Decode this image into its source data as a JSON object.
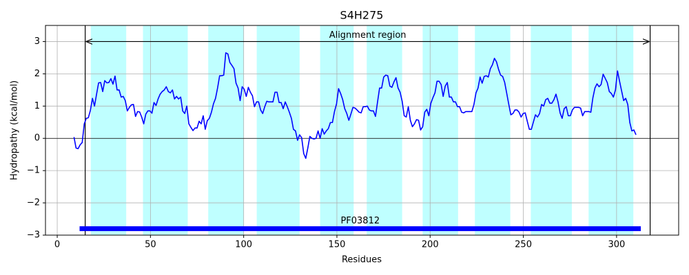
{
  "chart_data": {
    "type": "line",
    "title": "S4H275",
    "xlabel": "Residues",
    "ylabel": "Hydropathy (kcal/mol)",
    "xlim": [
      -6.3,
      333.3
    ],
    "ylim": [
      -3,
      3.5
    ],
    "xticks": [
      0,
      50,
      100,
      150,
      200,
      250,
      300
    ],
    "yticks": [
      {
        "value": -3,
        "label": "−3"
      },
      {
        "value": -2,
        "label": "−2"
      },
      {
        "value": -1,
        "label": "−1"
      },
      0,
      1,
      2,
      3
    ],
    "grid": true,
    "color": "#0000ff",
    "span_color": "#bfffff",
    "spans": [
      [
        18,
        37
      ],
      [
        46,
        70
      ],
      [
        81,
        100
      ],
      [
        107,
        130
      ],
      [
        141,
        159
      ],
      [
        166,
        185
      ],
      [
        196,
        215
      ],
      [
        224,
        243
      ],
      [
        254,
        276
      ],
      [
        285,
        309
      ]
    ],
    "vlines": [
      15,
      318
    ],
    "hline": 0,
    "annotation": {
      "text": "Alignment region",
      "x": [
        15,
        318
      ],
      "y": 3
    },
    "domain": {
      "label": "PF03812",
      "start": 12,
      "end": 313,
      "y": -2.8
    },
    "x": [
      9,
      10.1,
      11.2,
      12.3,
      13.4,
      14.5,
      15.6,
      16.7,
      17.8,
      18.9,
      20,
      21.1,
      22.2,
      23.3,
      24.4,
      25.5,
      26.6,
      27.7,
      28.8,
      29.9,
      31,
      32.1,
      33.2,
      34.3,
      35.4,
      36.5,
      37.6,
      38.7,
      39.8,
      40.9,
      42,
      43.1,
      44.2,
      45.3,
      46.4,
      47.5,
      48.6,
      49.7,
      50.8,
      51.9,
      53,
      54.1,
      55.2,
      56.3,
      57.4,
      58.5,
      59.6,
      60.7,
      61.8,
      62.9,
      64,
      65.1,
      66.2,
      67.3,
      68.4,
      69.5,
      70.6,
      71.7,
      72.8,
      73.9,
      75,
      76.1,
      77.2,
      78.3,
      79.4,
      80.5,
      81.6,
      82.7,
      83.8,
      84.9,
      86,
      87.1,
      88.2,
      89.3,
      90.4,
      91.5,
      92.6,
      93.7,
      94.8,
      95.9,
      97,
      98.1,
      99.2,
      100.3,
      101.4,
      102.5,
      103.6,
      104.7,
      105.8,
      106.9,
      108,
      109.1,
      110.2,
      111.3,
      112.4,
      113.5,
      114.6,
      115.7,
      116.8,
      117.9,
      119,
      120.1,
      121.2,
      122.3,
      123.4,
      124.5,
      125.6,
      126.7,
      127.8,
      128.9,
      130,
      131.1,
      132.2,
      133.3,
      134.4,
      135.5,
      136.6,
      137.7,
      138.8,
      139.9,
      141,
      142.1,
      143.2,
      144.3,
      145.4,
      146.5,
      147.6,
      148.7,
      149.8,
      150.9,
      152,
      153.1,
      154.2,
      155.3,
      156.4,
      157.5,
      158.6,
      159.7,
      160.8,
      161.9,
      163,
      164.1,
      165.2,
      166.3,
      167.4,
      168.5,
      169.6,
      170.7,
      171.8,
      172.9,
      174,
      175.1,
      176.2,
      177.3,
      178.4,
      179.5,
      180.6,
      181.7,
      182.8,
      183.9,
      185,
      186.1,
      187.2,
      188.3,
      189.4,
      190.5,
      191.6,
      192.7,
      193.8,
      194.9,
      196,
      197.1,
      198.2,
      199.3,
      200.4,
      201.5,
      202.6,
      203.7,
      204.8,
      205.9,
      207,
      208.1,
      209.2,
      210.3,
      211.4,
      212.5,
      213.6,
      214.7,
      215.8,
      216.9,
      218,
      219.1,
      220.2,
      221.3,
      222.4,
      223.5,
      224.6,
      225.7,
      226.8,
      227.9,
      229,
      230.1,
      231.2,
      232.3,
      233.4,
      234.5,
      235.6,
      236.7,
      237.8,
      238.9,
      240,
      241.1,
      242.2,
      243.3,
      244.4,
      245.5,
      246.6,
      247.7,
      248.8,
      249.9,
      251,
      252.1,
      253.2,
      254.3,
      255.4,
      256.5,
      257.6,
      258.7,
      259.8,
      260.9,
      262,
      263.1,
      264.2,
      265.3,
      266.4,
      267.5,
      268.6,
      269.7,
      270.8,
      271.9,
      273,
      274.1,
      275.2,
      276.3,
      277.4,
      278.5,
      279.6,
      280.7,
      281.8,
      282.9,
      284,
      285.1,
      286.2,
      287.3,
      288.4,
      289.5,
      290.6,
      291.7,
      292.8,
      293.9,
      295,
      296.1,
      297.2,
      298.3,
      299.4,
      300.5,
      301.6,
      302.7,
      303.8,
      304.9,
      306,
      307.1,
      308.2,
      309.3,
      310.4
    ],
    "values": [
      0.04,
      -0.3,
      -0.32,
      -0.2,
      -0.13,
      0.45,
      0.62,
      0.64,
      0.87,
      1.24,
      1.0,
      1.37,
      1.72,
      1.73,
      1.45,
      1.79,
      1.72,
      1.73,
      1.85,
      1.68,
      1.93,
      1.5,
      1.5,
      1.28,
      1.3,
      1.17,
      0.85,
      0.96,
      1.04,
      1.05,
      0.68,
      0.83,
      0.82,
      0.66,
      0.45,
      0.75,
      0.85,
      0.85,
      0.78,
      1.11,
      1.02,
      1.22,
      1.37,
      1.45,
      1.5,
      1.6,
      1.45,
      1.41,
      1.5,
      1.22,
      1.3,
      1.22,
      1.28,
      0.85,
      0.77,
      1.0,
      0.45,
      0.34,
      0.24,
      0.32,
      0.32,
      0.53,
      0.45,
      0.7,
      0.28,
      0.55,
      0.62,
      0.81,
      1.07,
      1.24,
      1.56,
      1.94,
      1.94,
      1.96,
      2.65,
      2.62,
      2.35,
      2.26,
      2.16,
      1.71,
      1.56,
      1.17,
      1.6,
      1.52,
      1.3,
      1.58,
      1.43,
      1.32,
      0.98,
      1.13,
      1.13,
      0.88,
      0.77,
      0.98,
      1.15,
      1.13,
      1.13,
      1.13,
      1.43,
      1.43,
      1.11,
      1.11,
      0.92,
      1.13,
      0.98,
      0.81,
      0.62,
      0.28,
      0.23,
      -0.06,
      0.11,
      0.02,
      -0.47,
      -0.62,
      -0.3,
      0.06,
      0,
      -0.02,
      0,
      0.23,
      0,
      0.3,
      0.13,
      0.23,
      0.3,
      0.49,
      0.49,
      0.83,
      1.07,
      1.54,
      1.39,
      1.2,
      0.92,
      0.77,
      0.56,
      0.75,
      0.96,
      0.94,
      0.88,
      0.81,
      0.79,
      0.98,
      0.98,
      1.0,
      0.88,
      0.85,
      0.85,
      0.68,
      1.13,
      1.56,
      1.56,
      1.9,
      1.96,
      1.94,
      1.62,
      1.58,
      1.75,
      1.88,
      1.56,
      1.43,
      1.15,
      0.7,
      0.66,
      0.98,
      0.56,
      0.36,
      0.45,
      0.58,
      0.56,
      0.26,
      0.36,
      0.81,
      0.9,
      0.7,
      1.09,
      1.26,
      1.41,
      1.77,
      1.77,
      1.67,
      1.3,
      1.62,
      1.73,
      1.28,
      1.28,
      1.13,
      1.13,
      0.98,
      0.98,
      0.81,
      0.79,
      0.83,
      0.83,
      0.83,
      0.83,
      1.05,
      1.41,
      1.56,
      1.9,
      1.71,
      1.92,
      1.94,
      1.9,
      2.16,
      2.28,
      2.48,
      2.37,
      2.14,
      1.96,
      1.92,
      1.73,
      1.39,
      1.05,
      0.73,
      0.77,
      0.88,
      0.88,
      0.81,
      0.66,
      0.77,
      0.79,
      0.53,
      0.28,
      0.28,
      0.51,
      0.73,
      0.66,
      0.77,
      1.05,
      1.0,
      1.2,
      1.24,
      1.09,
      1.09,
      1.2,
      1.37,
      1.13,
      0.79,
      0.62,
      0.92,
      0.98,
      0.7,
      0.7,
      0.88,
      0.96,
      0.96,
      0.96,
      0.94,
      0.7,
      0.83,
      0.83,
      0.83,
      0.81,
      1.26,
      1.56,
      1.69,
      1.6,
      1.67,
      1.99,
      1.86,
      1.73,
      1.45,
      1.39,
      1.28,
      1.5,
      2.09,
      1.77,
      1.47,
      1.17,
      1.24,
      1.05,
      0.49,
      0.23,
      0.26,
      0.11
    ]
  }
}
